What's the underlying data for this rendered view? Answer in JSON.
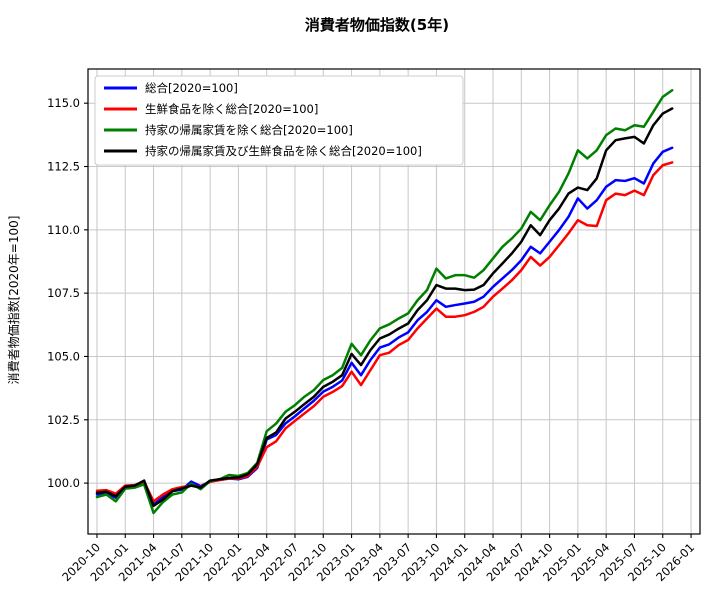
{
  "figure": {
    "title": "消費者物価指数(5年)"
  },
  "chart_data": {
    "type": "line",
    "title": "消費者物価指数(5年)",
    "xlabel": "",
    "ylabel": "消費者物価指数[2020年=100]",
    "grid": true,
    "legend_position": "upper left",
    "start_date": "2020-10",
    "x_interval": "1 month",
    "x_tick_interval_months": 3,
    "x_tick_labels": [
      "2020-10",
      "2021-01",
      "2021-04",
      "2021-07",
      "2021-10",
      "2022-01",
      "2022-04",
      "2022-07",
      "2022-10",
      "2023-01",
      "2023-04",
      "2023-07",
      "2023-10",
      "2024-01",
      "2024-04",
      "2024-07",
      "2024-10",
      "2025-01",
      "2025-04",
      "2025-07",
      "2025-10",
      "2026-01"
    ],
    "y_ticks": [
      100.0,
      102.5,
      105.0,
      107.5,
      110.0,
      112.5,
      115.0
    ],
    "ylim": [
      97.99,
      116.35
    ],
    "xlim_months": [
      -0.95,
      63.95
    ],
    "series": [
      {
        "name": "総合[2020=100]",
        "color": "#0000ff",
        "values": [
          99.55,
          99.6,
          99.42,
          99.82,
          99.86,
          99.98,
          99.15,
          99.45,
          99.68,
          99.74,
          100.06,
          99.88,
          100.06,
          100.12,
          100.18,
          100.15,
          100.25,
          100.6,
          101.72,
          101.9,
          102.36,
          102.64,
          102.95,
          103.25,
          103.61,
          103.8,
          104.05,
          104.75,
          104.26,
          104.86,
          105.35,
          105.48,
          105.75,
          105.95,
          106.43,
          106.76,
          107.22,
          106.96,
          107.03,
          107.09,
          107.16,
          107.36,
          107.75,
          108.08,
          108.41,
          108.8,
          109.33,
          109.07,
          109.53,
          109.99,
          110.51,
          111.24,
          110.84,
          111.17,
          111.7,
          111.96,
          111.93,
          112.04,
          111.83,
          112.62,
          113.08,
          113.24
        ]
      },
      {
        "name": "生鮮食品を除く総合[2020=100]",
        "color": "#ff0000",
        "values": [
          99.7,
          99.72,
          99.58,
          99.9,
          99.92,
          100.05,
          99.28,
          99.55,
          99.76,
          99.84,
          99.9,
          99.84,
          100.05,
          100.12,
          100.18,
          100.18,
          100.28,
          100.65,
          101.42,
          101.65,
          102.16,
          102.46,
          102.75,
          103.04,
          103.41,
          103.6,
          103.83,
          104.4,
          103.87,
          104.46,
          105.05,
          105.15,
          105.45,
          105.65,
          106.11,
          106.5,
          106.89,
          106.57,
          106.57,
          106.63,
          106.76,
          106.96,
          107.36,
          107.68,
          108.01,
          108.41,
          108.93,
          108.59,
          108.93,
          109.39,
          109.86,
          110.38,
          110.18,
          110.15,
          111.17,
          111.43,
          111.37,
          111.55,
          111.37,
          112.16,
          112.55,
          112.66
        ]
      },
      {
        "name": "持家の帰属家賃を除く総合[2020=100]",
        "color": "#008000",
        "values": [
          99.45,
          99.55,
          99.28,
          99.78,
          99.82,
          99.95,
          98.82,
          99.25,
          99.55,
          99.63,
          99.98,
          99.76,
          100.08,
          100.15,
          100.32,
          100.28,
          100.4,
          100.8,
          102.05,
          102.35,
          102.82,
          103.08,
          103.41,
          103.67,
          104.07,
          104.26,
          104.55,
          105.5,
          105.05,
          105.64,
          106.11,
          106.27,
          106.5,
          106.7,
          107.22,
          107.62,
          108.47,
          108.08,
          108.21,
          108.21,
          108.11,
          108.41,
          108.87,
          109.33,
          109.66,
          110.05,
          110.71,
          110.38,
          110.97,
          111.5,
          112.22,
          113.14,
          112.82,
          113.14,
          113.74,
          114.0,
          113.93,
          114.13,
          114.07,
          114.66,
          115.25,
          115.51
        ]
      },
      {
        "name": "持家の帰属家賃及び生鮮食品を除く総合[2020=100]",
        "color": "#000000",
        "values": [
          99.62,
          99.66,
          99.48,
          99.86,
          99.9,
          100.1,
          99.1,
          99.35,
          99.68,
          99.79,
          99.9,
          99.82,
          100.1,
          100.15,
          100.2,
          100.22,
          100.35,
          100.75,
          101.78,
          102.0,
          102.55,
          102.82,
          103.12,
          103.41,
          103.8,
          104.0,
          104.26,
          105.1,
          104.66,
          105.25,
          105.71,
          105.87,
          106.1,
          106.3,
          106.83,
          107.22,
          107.82,
          107.68,
          107.68,
          107.62,
          107.64,
          107.82,
          108.28,
          108.67,
          109.07,
          109.53,
          110.18,
          109.79,
          110.38,
          110.84,
          111.43,
          111.67,
          111.57,
          112.03,
          113.14,
          113.54,
          113.61,
          113.67,
          113.41,
          114.13,
          114.59,
          114.79
        ]
      }
    ],
    "style": {
      "grid_color": "#c7c7c7",
      "spine_color": "#000000",
      "background": "#ffffff",
      "legend_border_color": "#cccccc",
      "line_width": 2.5
    }
  }
}
